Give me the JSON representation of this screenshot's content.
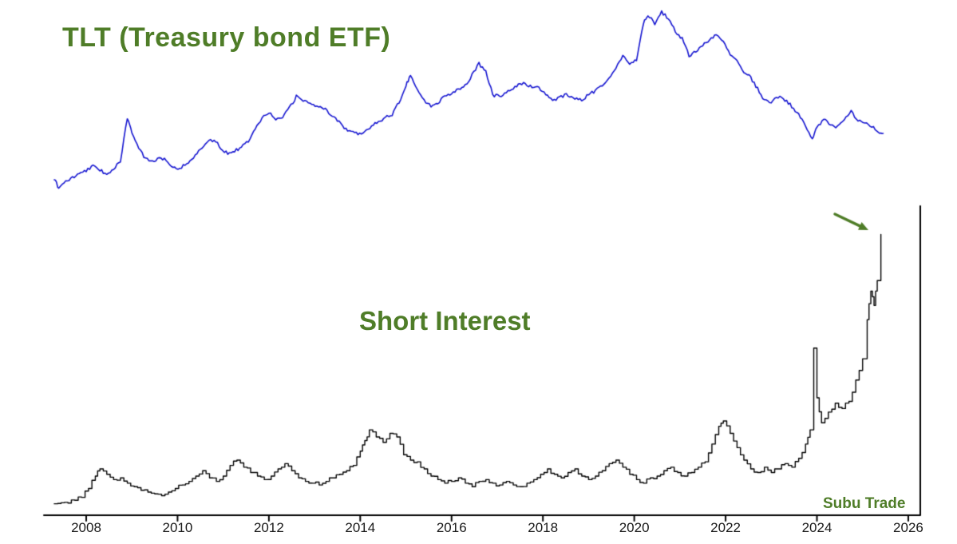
{
  "page": {
    "background": "#ffffff"
  },
  "chart_data": {
    "type": "line",
    "title_top": "TLT (Treasury bond ETF)",
    "title_bottom": "Short Interest",
    "watermark": "Subu Trade",
    "accent_color": "#4f7d28",
    "axis_color": "#000000",
    "x_ticks": [
      2008,
      2010,
      2012,
      2014,
      2016,
      2018,
      2020,
      2022,
      2024,
      2026
    ],
    "xlim": [
      2007.05,
      2026.3
    ],
    "grid": false,
    "legend": "none",
    "y_axis": "unlabeled",
    "annotation": {
      "type": "arrow",
      "color": "#4f7d28",
      "points_to": "final short-interest spike in 2025"
    },
    "series": [
      {
        "name": "TLT",
        "color": "#1515d0",
        "style": "noisy-line",
        "ylim": [
          80,
          175
        ],
        "points": [
          [
            2007.3,
            87
          ],
          [
            2007.4,
            83
          ],
          [
            2007.55,
            86
          ],
          [
            2007.7,
            88
          ],
          [
            2007.85,
            90
          ],
          [
            2008.0,
            92
          ],
          [
            2008.15,
            94
          ],
          [
            2008.3,
            92
          ],
          [
            2008.45,
            90
          ],
          [
            2008.6,
            93
          ],
          [
            2008.75,
            96
          ],
          [
            2008.9,
            119
          ],
          [
            2009.0,
            112
          ],
          [
            2009.15,
            103
          ],
          [
            2009.3,
            98
          ],
          [
            2009.45,
            96
          ],
          [
            2009.6,
            99
          ],
          [
            2009.75,
            97
          ],
          [
            2009.9,
            94
          ],
          [
            2010.05,
            93
          ],
          [
            2010.2,
            95
          ],
          [
            2010.35,
            99
          ],
          [
            2010.5,
            103
          ],
          [
            2010.65,
            106
          ],
          [
            2010.8,
            108
          ],
          [
            2010.95,
            103
          ],
          [
            2011.1,
            101
          ],
          [
            2011.25,
            102
          ],
          [
            2011.4,
            104
          ],
          [
            2011.55,
            107
          ],
          [
            2011.7,
            114
          ],
          [
            2011.85,
            119
          ],
          [
            2012.0,
            122
          ],
          [
            2012.15,
            118
          ],
          [
            2012.3,
            119
          ],
          [
            2012.45,
            124
          ],
          [
            2012.6,
            130
          ],
          [
            2012.75,
            128
          ],
          [
            2012.9,
            127
          ],
          [
            2013.05,
            125
          ],
          [
            2013.2,
            124
          ],
          [
            2013.35,
            121
          ],
          [
            2013.5,
            118
          ],
          [
            2013.65,
            114
          ],
          [
            2013.8,
            112
          ],
          [
            2013.95,
            111
          ],
          [
            2014.1,
            112
          ],
          [
            2014.25,
            115
          ],
          [
            2014.4,
            117
          ],
          [
            2014.55,
            119
          ],
          [
            2014.7,
            121
          ],
          [
            2014.85,
            127
          ],
          [
            2015.0,
            136
          ],
          [
            2015.1,
            141
          ],
          [
            2015.25,
            134
          ],
          [
            2015.4,
            128
          ],
          [
            2015.55,
            125
          ],
          [
            2015.7,
            127
          ],
          [
            2015.85,
            130
          ],
          [
            2016.0,
            132
          ],
          [
            2016.15,
            134
          ],
          [
            2016.3,
            136
          ],
          [
            2016.45,
            141
          ],
          [
            2016.6,
            147
          ],
          [
            2016.75,
            143
          ],
          [
            2016.9,
            131
          ],
          [
            2017.05,
            130
          ],
          [
            2017.2,
            132
          ],
          [
            2017.35,
            134
          ],
          [
            2017.5,
            137
          ],
          [
            2017.65,
            136
          ],
          [
            2017.8,
            135
          ],
          [
            2017.95,
            134
          ],
          [
            2018.1,
            130
          ],
          [
            2018.25,
            128
          ],
          [
            2018.4,
            130
          ],
          [
            2018.55,
            131
          ],
          [
            2018.7,
            129
          ],
          [
            2018.85,
            128
          ],
          [
            2019.0,
            131
          ],
          [
            2019.15,
            133
          ],
          [
            2019.3,
            136
          ],
          [
            2019.45,
            140
          ],
          [
            2019.6,
            145
          ],
          [
            2019.75,
            151
          ],
          [
            2019.9,
            147
          ],
          [
            2020.05,
            149
          ],
          [
            2020.2,
            168
          ],
          [
            2020.3,
            172
          ],
          [
            2020.45,
            168
          ],
          [
            2020.6,
            174
          ],
          [
            2020.75,
            170
          ],
          [
            2020.9,
            164
          ],
          [
            2021.05,
            160
          ],
          [
            2021.2,
            151
          ],
          [
            2021.35,
            153
          ],
          [
            2021.5,
            157
          ],
          [
            2021.65,
            159
          ],
          [
            2021.8,
            162
          ],
          [
            2021.95,
            159
          ],
          [
            2022.1,
            152
          ],
          [
            2022.25,
            149
          ],
          [
            2022.4,
            143
          ],
          [
            2022.55,
            140
          ],
          [
            2022.7,
            134
          ],
          [
            2022.85,
            128
          ],
          [
            2023.0,
            127
          ],
          [
            2023.15,
            130
          ],
          [
            2023.3,
            128
          ],
          [
            2023.45,
            125
          ],
          [
            2023.6,
            121
          ],
          [
            2023.75,
            115
          ],
          [
            2023.9,
            108
          ],
          [
            2024.0,
            114
          ],
          [
            2024.15,
            118
          ],
          [
            2024.3,
            116
          ],
          [
            2024.45,
            114
          ],
          [
            2024.6,
            118
          ],
          [
            2024.75,
            122
          ],
          [
            2024.9,
            117
          ],
          [
            2025.05,
            117
          ],
          [
            2025.2,
            115
          ],
          [
            2025.35,
            112
          ],
          [
            2025.45,
            111
          ]
        ]
      },
      {
        "name": "Short Interest",
        "color": "#000000",
        "style": "step-line",
        "ylim": [
          0,
          80
        ],
        "points": [
          [
            2007.3,
            1.2
          ],
          [
            2007.45,
            1.5
          ],
          [
            2007.6,
            1.4
          ],
          [
            2007.75,
            2.2
          ],
          [
            2007.9,
            3.0
          ],
          [
            2008.05,
            5.5
          ],
          [
            2008.2,
            9.0
          ],
          [
            2008.3,
            11.0
          ],
          [
            2008.45,
            9.5
          ],
          [
            2008.6,
            8.0
          ],
          [
            2008.75,
            8.5
          ],
          [
            2008.9,
            7.0
          ],
          [
            2009.05,
            6.0
          ],
          [
            2009.2,
            5.0
          ],
          [
            2009.35,
            4.5
          ],
          [
            2009.5,
            4.0
          ],
          [
            2009.65,
            3.5
          ],
          [
            2009.8,
            4.5
          ],
          [
            2009.95,
            5.5
          ],
          [
            2010.1,
            6.5
          ],
          [
            2010.25,
            7.5
          ],
          [
            2010.4,
            9.0
          ],
          [
            2010.55,
            10.5
          ],
          [
            2010.7,
            8.5
          ],
          [
            2010.85,
            7.5
          ],
          [
            2011.0,
            9.0
          ],
          [
            2011.15,
            12.0
          ],
          [
            2011.3,
            13.5
          ],
          [
            2011.45,
            11.5
          ],
          [
            2011.6,
            10.0
          ],
          [
            2011.75,
            9.0
          ],
          [
            2011.9,
            8.0
          ],
          [
            2012.05,
            9.0
          ],
          [
            2012.2,
            11.0
          ],
          [
            2012.35,
            12.5
          ],
          [
            2012.5,
            10.5
          ],
          [
            2012.65,
            8.5
          ],
          [
            2012.8,
            7.5
          ],
          [
            2012.95,
            7.0
          ],
          [
            2013.1,
            6.5
          ],
          [
            2013.25,
            7.5
          ],
          [
            2013.4,
            8.5
          ],
          [
            2013.55,
            9.5
          ],
          [
            2013.7,
            10.5
          ],
          [
            2013.85,
            12.0
          ],
          [
            2014.0,
            16.0
          ],
          [
            2014.1,
            19.0
          ],
          [
            2014.2,
            22.0
          ],
          [
            2014.35,
            20.0
          ],
          [
            2014.5,
            18.5
          ],
          [
            2014.65,
            21.0
          ],
          [
            2014.8,
            20.0
          ],
          [
            2014.95,
            15.0
          ],
          [
            2015.1,
            13.5
          ],
          [
            2015.25,
            13.0
          ],
          [
            2015.4,
            11.0
          ],
          [
            2015.55,
            9.0
          ],
          [
            2015.7,
            8.0
          ],
          [
            2015.85,
            7.0
          ],
          [
            2016.0,
            7.5
          ],
          [
            2016.15,
            8.5
          ],
          [
            2016.3,
            7.0
          ],
          [
            2016.45,
            6.0
          ],
          [
            2016.6,
            7.5
          ],
          [
            2016.75,
            8.0
          ],
          [
            2016.9,
            7.0
          ],
          [
            2017.05,
            6.5
          ],
          [
            2017.2,
            7.5
          ],
          [
            2017.35,
            6.5
          ],
          [
            2017.5,
            6.0
          ],
          [
            2017.65,
            7.0
          ],
          [
            2017.8,
            8.0
          ],
          [
            2017.95,
            9.5
          ],
          [
            2018.1,
            11.0
          ],
          [
            2018.25,
            9.5
          ],
          [
            2018.4,
            8.5
          ],
          [
            2018.55,
            10.0
          ],
          [
            2018.7,
            11.0
          ],
          [
            2018.85,
            9.0
          ],
          [
            2019.0,
            8.0
          ],
          [
            2019.15,
            9.0
          ],
          [
            2019.3,
            10.5
          ],
          [
            2019.45,
            12.5
          ],
          [
            2019.6,
            13.5
          ],
          [
            2019.75,
            11.5
          ],
          [
            2019.9,
            9.5
          ],
          [
            2020.05,
            8.0
          ],
          [
            2020.2,
            7.0
          ],
          [
            2020.35,
            8.5
          ],
          [
            2020.5,
            9.0
          ],
          [
            2020.65,
            10.5
          ],
          [
            2020.8,
            11.5
          ],
          [
            2020.95,
            10.0
          ],
          [
            2021.1,
            9.0
          ],
          [
            2021.25,
            10.0
          ],
          [
            2021.4,
            11.5
          ],
          [
            2021.55,
            13.0
          ],
          [
            2021.7,
            18.0
          ],
          [
            2021.85,
            23.0
          ],
          [
            2021.95,
            24.5
          ],
          [
            2022.1,
            21.0
          ],
          [
            2022.25,
            17.0
          ],
          [
            2022.4,
            13.5
          ],
          [
            2022.55,
            11.0
          ],
          [
            2022.7,
            10.0
          ],
          [
            2022.85,
            11.5
          ],
          [
            2023.0,
            10.0
          ],
          [
            2023.15,
            11.0
          ],
          [
            2023.3,
            12.5
          ],
          [
            2023.45,
            11.5
          ],
          [
            2023.6,
            14.0
          ],
          [
            2023.75,
            18.0
          ],
          [
            2023.85,
            22.0
          ],
          [
            2023.93,
            45.0
          ],
          [
            2024.0,
            31.0
          ],
          [
            2024.1,
            24.0
          ],
          [
            2024.25,
            27.0
          ],
          [
            2024.4,
            29.5
          ],
          [
            2024.55,
            28.0
          ],
          [
            2024.7,
            30.0
          ],
          [
            2024.85,
            36.0
          ],
          [
            2025.0,
            42.0
          ],
          [
            2025.1,
            53.0
          ],
          [
            2025.18,
            61.0
          ],
          [
            2025.25,
            57.0
          ],
          [
            2025.32,
            64.0
          ],
          [
            2025.4,
            77.0
          ]
        ]
      }
    ]
  }
}
